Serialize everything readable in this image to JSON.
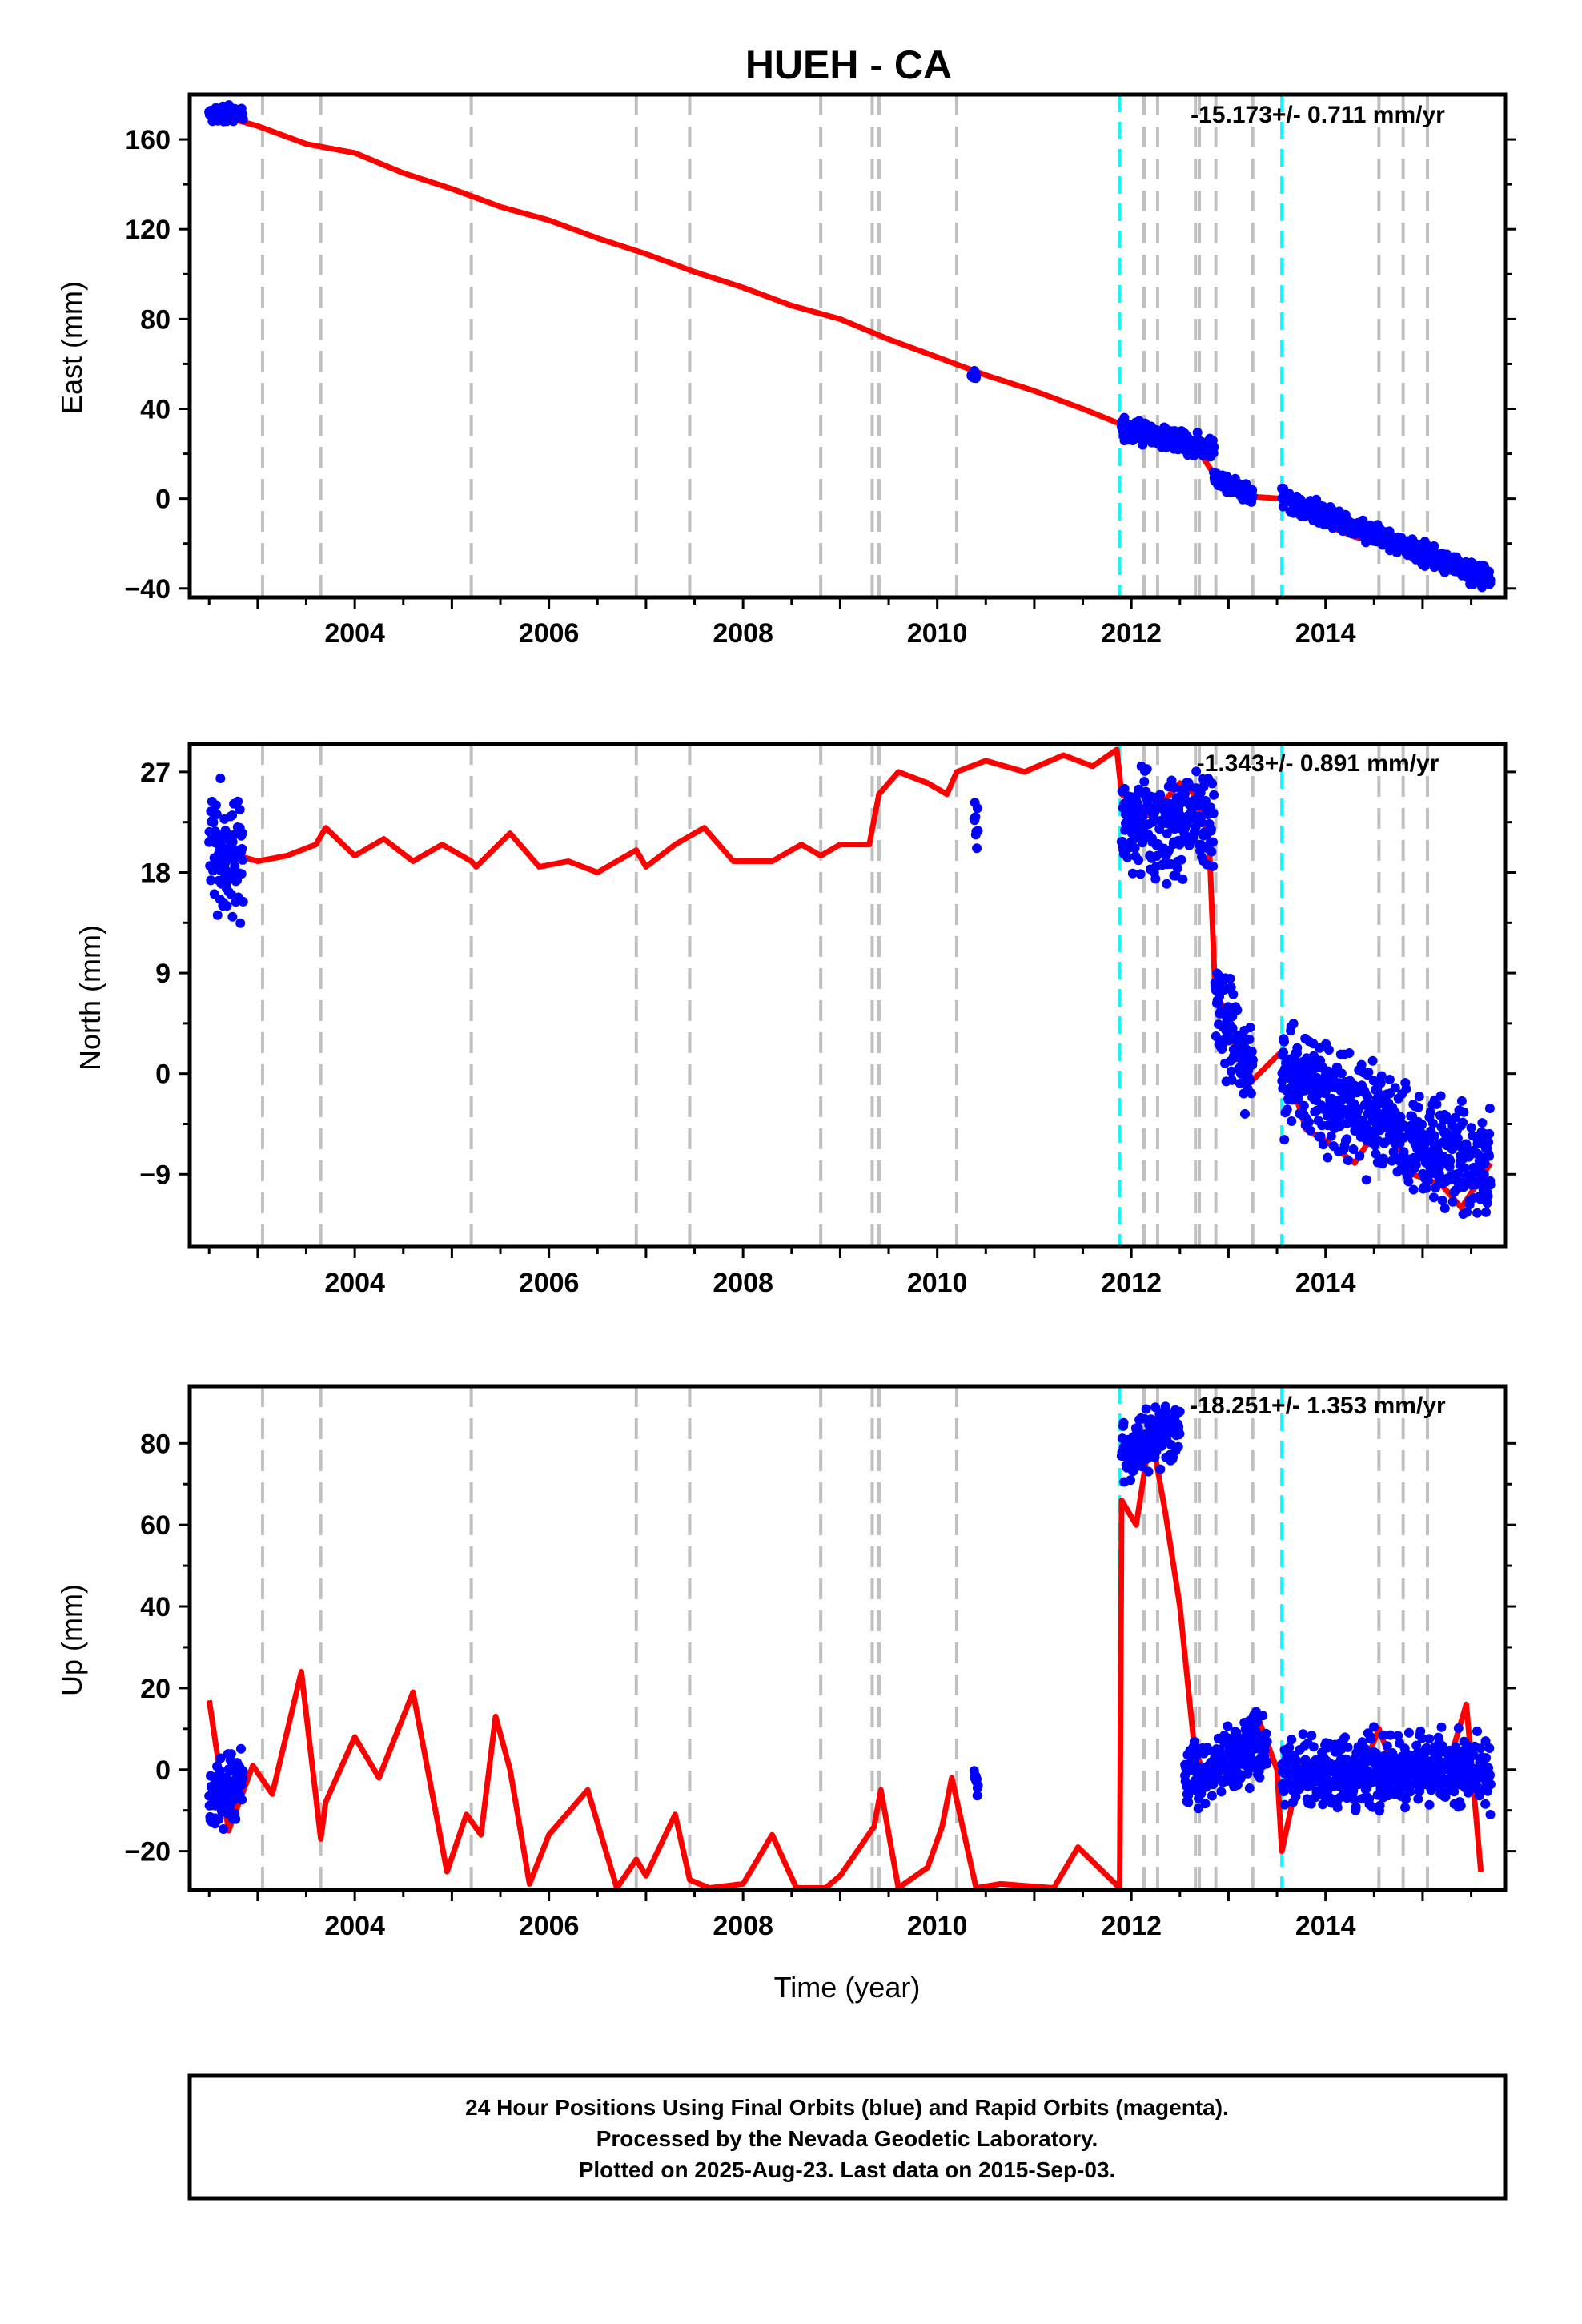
{
  "title": "HUEH - CA",
  "colors": {
    "frame": "#000000",
    "final_orbits": "#0000ff",
    "model": "#ff0000",
    "event_gray": "#c0c0c0",
    "event_cyan": "#00ffff"
  },
  "chart_data": [
    {
      "type": "scatter",
      "panel": "east",
      "ylabel": "East (mm)",
      "xlabel": "",
      "xlim": [
        2002.3,
        2015.85
      ],
      "ylim": [
        -44,
        180
      ],
      "xticks": [
        2004,
        2006,
        2008,
        2010,
        2012,
        2014
      ],
      "yticks": [
        -40,
        0,
        40,
        80,
        120,
        160
      ],
      "ytick_labels": [
        "−40",
        "0",
        "40",
        "80",
        "120",
        "160"
      ],
      "rate_text": "-15.173+/- 0.711 mm/yr",
      "model_series": {
        "name": "model",
        "x": [
          2002.5,
          2003.0,
          2003.5,
          2004.0,
          2004.5,
          2005.0,
          2005.5,
          2006.0,
          2006.5,
          2007.0,
          2007.5,
          2008.0,
          2008.5,
          2009.0,
          2009.5,
          2010.0,
          2010.5,
          2011.0,
          2011.5,
          2011.9,
          2012.3,
          2012.65,
          2012.85,
          2013.2,
          2013.55,
          2013.9,
          2014.3,
          2014.7,
          2015.1,
          2015.5,
          2015.7
        ],
        "y": [
          172,
          166,
          158,
          154,
          145,
          138,
          130,
          124,
          116,
          109,
          101,
          94,
          86,
          80,
          71,
          63,
          55,
          48,
          40,
          33,
          27,
          24,
          11,
          1,
          0,
          -10,
          -17,
          -22,
          -29,
          -33,
          -36
        ]
      },
      "data_clusters": [
        {
          "name": "final_orbits",
          "x_start": 2002.5,
          "x_end": 2002.85,
          "y_start": 172,
          "y_end": 171,
          "spread": 4
        },
        {
          "name": "final_orbits",
          "x_start": 2010.35,
          "x_end": 2010.4,
          "y_start": 55,
          "y_end": 55,
          "spread": 2
        },
        {
          "name": "final_orbits",
          "x_start": 2011.9,
          "x_end": 2012.85,
          "y_start": 31,
          "y_end": 22,
          "spread": 5
        },
        {
          "name": "final_orbits",
          "x_start": 2012.85,
          "x_end": 2013.25,
          "y_start": 10,
          "y_end": 1,
          "spread": 4
        },
        {
          "name": "final_orbits",
          "x_start": 2013.55,
          "x_end": 2015.7,
          "y_start": 0,
          "y_end": -36,
          "spread": 5
        }
      ]
    },
    {
      "type": "scatter",
      "panel": "north",
      "ylabel": "North (mm)",
      "xlabel": "",
      "xlim": [
        2002.3,
        2015.85
      ],
      "ylim": [
        -15.5,
        29.5
      ],
      "xticks": [
        2004,
        2006,
        2008,
        2010,
        2012,
        2014
      ],
      "yticks": [
        -9,
        0,
        9,
        18,
        27
      ],
      "ytick_labels": [
        "−9",
        "0",
        "9",
        "18",
        "27"
      ],
      "rate_text": "-1.343+/- 0.891 mm/yr",
      "model_series": {
        "name": "model",
        "x": [
          2002.5,
          2002.65,
          2002.8,
          2003.0,
          2003.3,
          2003.6,
          2003.7,
          2004.0,
          2004.3,
          2004.6,
          2004.9,
          2005.2,
          2005.25,
          2005.6,
          2005.9,
          2006.2,
          2006.5,
          2006.9,
          2007.0,
          2007.3,
          2007.6,
          2007.9,
          2008.3,
          2008.6,
          2008.8,
          2009.0,
          2009.3,
          2009.4,
          2009.6,
          2009.9,
          2010.1,
          2010.2,
          2010.5,
          2010.9,
          2011.3,
          2011.6,
          2011.85,
          2011.9,
          2012.2,
          2012.5,
          2012.65,
          2012.8,
          2012.86,
          2013.2,
          2013.55,
          2013.8,
          2014.0,
          2014.3,
          2014.6,
          2014.9,
          2015.2,
          2015.4,
          2015.7
        ],
        "y": [
          20.5,
          21.5,
          19.5,
          19,
          19.5,
          20.5,
          22,
          19.5,
          21,
          19,
          20.5,
          19,
          18.5,
          21.5,
          18.5,
          19,
          18,
          20,
          18.5,
          20.5,
          22,
          19,
          19,
          20.5,
          19.5,
          20.5,
          20.5,
          25,
          27,
          26,
          25,
          27,
          28,
          27,
          28.5,
          27.5,
          29,
          25,
          23,
          26,
          25,
          21,
          8,
          -1,
          2,
          -5,
          -6,
          -8,
          -4,
          -9,
          -10,
          -12,
          -8
        ]
      },
      "data_clusters": [
        {
          "name": "final_orbits",
          "x_start": 2002.5,
          "x_end": 2002.85,
          "y_start": 20,
          "y_end": 19,
          "spread": 6
        },
        {
          "name": "final_orbits",
          "x_start": 2010.38,
          "x_end": 2010.42,
          "y_start": 22.5,
          "y_end": 22.5,
          "spread": 2
        },
        {
          "name": "final_orbits",
          "x_start": 2011.9,
          "x_end": 2012.85,
          "y_start": 22.5,
          "y_end": 23,
          "spread": 5
        },
        {
          "name": "final_orbits",
          "x_start": 2012.86,
          "x_end": 2013.25,
          "y_start": 6,
          "y_end": 0,
          "spread": 5
        },
        {
          "name": "final_orbits",
          "x_start": 2013.55,
          "x_end": 2015.7,
          "y_start": 0,
          "y_end": -9,
          "spread": 5
        }
      ]
    },
    {
      "type": "scatter",
      "panel": "up",
      "ylabel": "Up (mm)",
      "xlabel": "Time (year)",
      "xlim": [
        2002.3,
        2015.85
      ],
      "ylim": [
        -29.5,
        94
      ],
      "xticks": [
        2004,
        2006,
        2008,
        2010,
        2012,
        2014
      ],
      "yticks": [
        -20,
        0,
        20,
        40,
        60,
        80
      ],
      "ytick_labels": [
        "−20",
        "0",
        "20",
        "40",
        "60",
        "80"
      ],
      "rate_text": "-18.251+/- 1.353 mm/yr",
      "model_series": {
        "name": "model",
        "x": [
          2002.5,
          2002.7,
          2002.95,
          2003.15,
          2003.45,
          2003.65,
          2003.7,
          2004.0,
          2004.25,
          2004.6,
          2004.95,
          2005.15,
          2005.3,
          2005.45,
          2005.6,
          2005.8,
          2006.0,
          2006.4,
          2006.7,
          2006.9,
          2007.0,
          2007.3,
          2007.45,
          2007.65,
          2008.0,
          2008.3,
          2008.55,
          2008.85,
          2009.0,
          2009.35,
          2009.42,
          2009.6,
          2009.9,
          2010.05,
          2010.15,
          2010.4,
          2010.65,
          2011.2,
          2011.45,
          2011.88,
          2011.9,
          2012.05,
          2012.2,
          2012.35,
          2012.5,
          2012.65,
          2012.8,
          2013.0,
          2013.3,
          2013.5,
          2013.55,
          2013.75,
          2014.0,
          2014.3,
          2014.55,
          2014.8,
          2015.0,
          2015.25,
          2015.45,
          2015.6
        ],
        "y": [
          17,
          -15,
          1,
          -6,
          24,
          -17,
          -8,
          8,
          -2,
          19,
          -25,
          -11,
          -16,
          13,
          0,
          -28,
          -16,
          -5,
          -29,
          -22,
          -26,
          -11,
          -27,
          -29,
          -28,
          -16,
          -29,
          -29,
          -26,
          -14,
          -5,
          -29,
          -24,
          -14,
          -2,
          -29,
          -28,
          -29,
          -19,
          -29,
          66,
          60,
          83,
          63,
          40,
          5,
          -4,
          3,
          13,
          0,
          -20,
          2,
          -2,
          -5,
          10,
          -6,
          -2,
          0,
          16,
          -25
        ]
      },
      "data_clusters": [
        {
          "name": "final_orbits",
          "x_start": 2002.5,
          "x_end": 2002.85,
          "y_start": -8,
          "y_end": -2,
          "spread": 9
        },
        {
          "name": "final_orbits",
          "x_start": 2010.38,
          "x_end": 2010.42,
          "y_start": -2,
          "y_end": -2,
          "spread": 4
        },
        {
          "name": "final_orbits",
          "x_start": 2011.9,
          "x_end": 2012.5,
          "y_start": 78,
          "y_end": 84,
          "spread": 8
        },
        {
          "name": "final_orbits",
          "x_start": 2012.55,
          "x_end": 2013.4,
          "y_start": -2,
          "y_end": 6,
          "spread": 9
        },
        {
          "name": "final_orbits",
          "x_start": 2013.55,
          "x_end": 2015.7,
          "y_start": -1,
          "y_end": 0,
          "spread": 9
        }
      ]
    }
  ],
  "event_lines": {
    "gray": [
      2003.05,
      2003.65,
      2005.2,
      2006.9,
      2007.45,
      2008.8,
      2009.33,
      2009.4,
      2010.2,
      2012.13,
      2012.27,
      2012.66,
      2012.7,
      2012.87,
      2013.25,
      2014.55,
      2014.8,
      2015.05
    ],
    "cyan": [
      2011.88,
      2013.55
    ]
  },
  "footer": {
    "line1": "24 Hour Positions Using Final Orbits (blue) and Rapid Orbits (magenta).",
    "line2": "Processed by the Nevada Geodetic Laboratory.",
    "line3": "Plotted on 2025-Aug-23. Last data on 2015-Sep-03."
  }
}
